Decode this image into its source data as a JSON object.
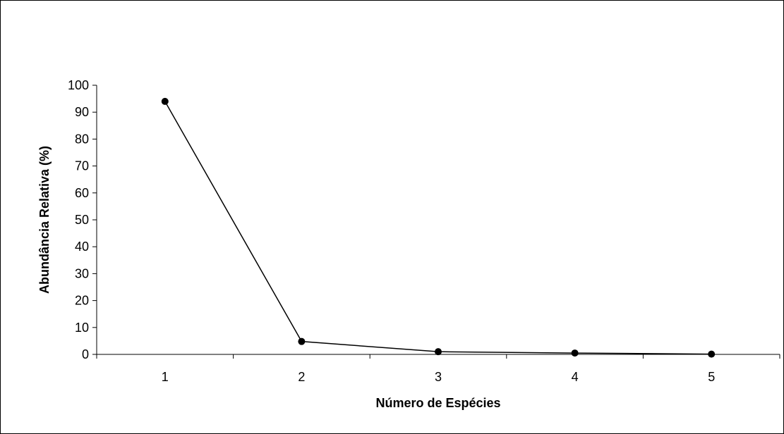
{
  "chart_data": {
    "type": "line",
    "title": "",
    "xlabel": "Número de Espécies",
    "ylabel": "Abundância Relativa (%)",
    "categories": [
      "1",
      "2",
      "3",
      "4",
      "5"
    ],
    "series": [
      {
        "values": [
          94.0,
          4.8,
          1.0,
          0.5,
          0.1
        ]
      }
    ],
    "ylim": [
      0,
      100
    ],
    "yticks": [
      "0",
      "10",
      "20",
      "30",
      "40",
      "50",
      "60",
      "70",
      "80",
      "90",
      "100"
    ],
    "grid": false,
    "legend": "none",
    "line_color": "#000000",
    "marker_color": "#000000"
  }
}
